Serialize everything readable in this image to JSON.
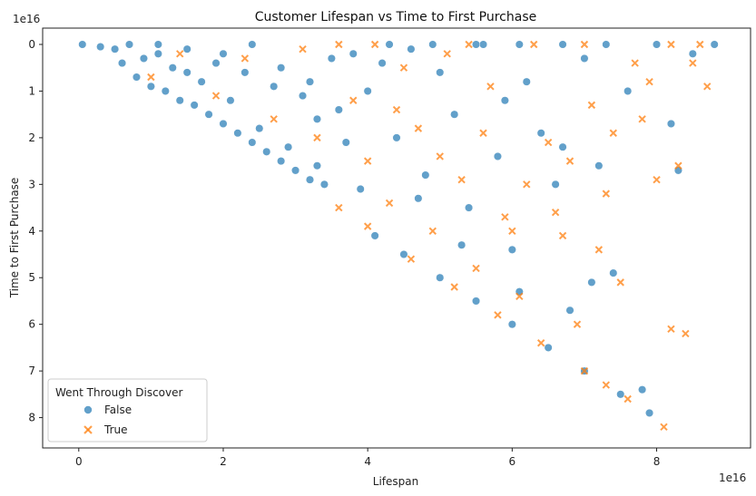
{
  "chart_data": {
    "type": "scatter",
    "title": "Customer Lifespan vs Time to First Purchase",
    "xlabel": "Lifespan",
    "ylabel": "Time to First Purchase",
    "x_offset_label": "1e16",
    "y_offset_label": "1e16",
    "x_scale": 1e+16,
    "y_scale": 1e+16,
    "xlim": [
      -0.5,
      9.3
    ],
    "ylim": [
      -0.35,
      8.65
    ],
    "y_inverted": true,
    "x_ticks": [
      0,
      2,
      4,
      6,
      8
    ],
    "y_ticks": [
      0,
      1,
      2,
      3,
      4,
      5,
      6,
      7,
      8
    ],
    "grid": false,
    "legend": {
      "title": "Went Through Discover",
      "placement": "lower-left",
      "entries": [
        {
          "label": "False",
          "marker": "circle",
          "color": "#1f77b4"
        },
        {
          "label": "True",
          "marker": "x",
          "color": "#ff7f0e"
        }
      ]
    },
    "series": [
      {
        "name": "False",
        "marker": "circle",
        "color": "#1f77b4",
        "points": [
          [
            0.05,
            0.0
          ],
          [
            0.3,
            0.05
          ],
          [
            0.5,
            0.1
          ],
          [
            0.7,
            0.0
          ],
          [
            0.9,
            0.3
          ],
          [
            1.1,
            0.2
          ],
          [
            1.3,
            0.5
          ],
          [
            1.5,
            0.1
          ],
          [
            1.7,
            0.8
          ],
          [
            1.9,
            0.4
          ],
          [
            2.1,
            1.2
          ],
          [
            2.3,
            0.6
          ],
          [
            2.5,
            1.8
          ],
          [
            2.7,
            0.9
          ],
          [
            2.9,
            2.2
          ],
          [
            3.1,
            1.1
          ],
          [
            3.3,
            2.6
          ],
          [
            3.5,
            0.3
          ],
          [
            1.0,
            0.9
          ],
          [
            1.4,
            1.2
          ],
          [
            1.8,
            1.5
          ],
          [
            2.2,
            1.9
          ],
          [
            2.6,
            2.3
          ],
          [
            3.0,
            2.7
          ],
          [
            3.4,
            3.0
          ],
          [
            2.0,
            0.2
          ],
          [
            2.4,
            0.0
          ],
          [
            2.8,
            0.5
          ],
          [
            3.2,
            0.8
          ],
          [
            3.6,
            1.4
          ],
          [
            0.6,
            0.4
          ],
          [
            0.8,
            0.7
          ],
          [
            1.2,
            1.0
          ],
          [
            1.6,
            1.3
          ],
          [
            2.0,
            1.7
          ],
          [
            2.4,
            2.1
          ],
          [
            2.8,
            2.5
          ],
          [
            3.2,
            2.9
          ],
          [
            1.1,
            0.0
          ],
          [
            1.5,
            0.6
          ],
          [
            3.8,
            0.2
          ],
          [
            4.0,
            1.0
          ],
          [
            4.2,
            0.4
          ],
          [
            4.4,
            2.0
          ],
          [
            4.6,
            0.1
          ],
          [
            4.8,
            2.8
          ],
          [
            5.0,
            0.6
          ],
          [
            5.2,
            1.5
          ],
          [
            5.4,
            3.5
          ],
          [
            5.6,
            0.0
          ],
          [
            5.8,
            2.4
          ],
          [
            6.0,
            4.4
          ],
          [
            6.2,
            0.8
          ],
          [
            6.4,
            1.9
          ],
          [
            6.6,
            3.0
          ],
          [
            6.8,
            5.7
          ],
          [
            7.0,
            0.3
          ],
          [
            7.2,
            2.6
          ],
          [
            7.4,
            4.9
          ],
          [
            7.6,
            1.0
          ],
          [
            7.8,
            7.4
          ],
          [
            7.9,
            7.9
          ],
          [
            8.2,
            1.7
          ],
          [
            8.3,
            2.7
          ],
          [
            8.5,
            0.2
          ],
          [
            8.8,
            0.0
          ],
          [
            4.1,
            4.1
          ],
          [
            4.5,
            4.5
          ],
          [
            5.0,
            5.0
          ],
          [
            5.5,
            5.5
          ],
          [
            6.0,
            6.0
          ],
          [
            6.5,
            6.5
          ],
          [
            7.0,
            7.0
          ],
          [
            7.5,
            7.5
          ],
          [
            6.1,
            5.3
          ],
          [
            5.3,
            4.3
          ],
          [
            4.7,
            3.3
          ],
          [
            7.1,
            5.1
          ],
          [
            6.7,
            2.2
          ],
          [
            5.9,
            1.2
          ],
          [
            4.3,
            0.0
          ],
          [
            4.9,
            0.0
          ],
          [
            5.5,
            0.0
          ],
          [
            6.1,
            0.0
          ],
          [
            6.7,
            0.0
          ],
          [
            7.3,
            0.0
          ],
          [
            8.0,
            0.0
          ],
          [
            3.7,
            2.1
          ],
          [
            3.9,
            3.1
          ],
          [
            3.3,
            1.6
          ]
        ]
      },
      {
        "name": "True",
        "marker": "x",
        "color": "#ff7f0e",
        "points": [
          [
            1.0,
            0.7
          ],
          [
            1.4,
            0.2
          ],
          [
            1.9,
            1.1
          ],
          [
            2.3,
            0.3
          ],
          [
            2.7,
            1.6
          ],
          [
            3.1,
            0.1
          ],
          [
            3.3,
            2.0
          ],
          [
            3.6,
            0.0
          ],
          [
            3.8,
            1.2
          ],
          [
            4.0,
            2.5
          ],
          [
            4.1,
            0.0
          ],
          [
            4.3,
            3.4
          ],
          [
            4.5,
            0.5
          ],
          [
            4.7,
            1.8
          ],
          [
            4.9,
            4.0
          ],
          [
            5.1,
            0.2
          ],
          [
            5.3,
            2.9
          ],
          [
            5.5,
            4.8
          ],
          [
            5.7,
            0.9
          ],
          [
            5.9,
            3.7
          ],
          [
            6.1,
            5.4
          ],
          [
            6.3,
            0.0
          ],
          [
            6.5,
            2.1
          ],
          [
            6.7,
            4.1
          ],
          [
            6.9,
            6.0
          ],
          [
            7.1,
            1.3
          ],
          [
            7.3,
            3.2
          ],
          [
            7.5,
            5.1
          ],
          [
            7.7,
            0.4
          ],
          [
            7.8,
            1.6
          ],
          [
            8.0,
            2.9
          ],
          [
            8.1,
            8.2
          ],
          [
            8.2,
            6.1
          ],
          [
            8.3,
            2.6
          ],
          [
            8.4,
            6.2
          ],
          [
            8.7,
            0.9
          ],
          [
            8.5,
            0.4
          ],
          [
            8.6,
            0.0
          ],
          [
            3.6,
            3.5
          ],
          [
            4.0,
            3.9
          ],
          [
            4.6,
            4.6
          ],
          [
            5.2,
            5.2
          ],
          [
            5.8,
            5.8
          ],
          [
            6.4,
            6.4
          ],
          [
            7.0,
            7.0
          ],
          [
            7.3,
            7.3
          ],
          [
            7.6,
            7.6
          ],
          [
            6.0,
            4.0
          ],
          [
            6.6,
            3.6
          ],
          [
            7.2,
            4.4
          ],
          [
            4.4,
            1.4
          ],
          [
            5.0,
            2.4
          ],
          [
            5.6,
            1.9
          ],
          [
            6.2,
            3.0
          ],
          [
            6.8,
            2.5
          ],
          [
            7.4,
            1.9
          ],
          [
            7.9,
            0.8
          ],
          [
            8.2,
            0.0
          ],
          [
            7.0,
            0.0
          ],
          [
            5.4,
            0.0
          ]
        ]
      }
    ]
  }
}
